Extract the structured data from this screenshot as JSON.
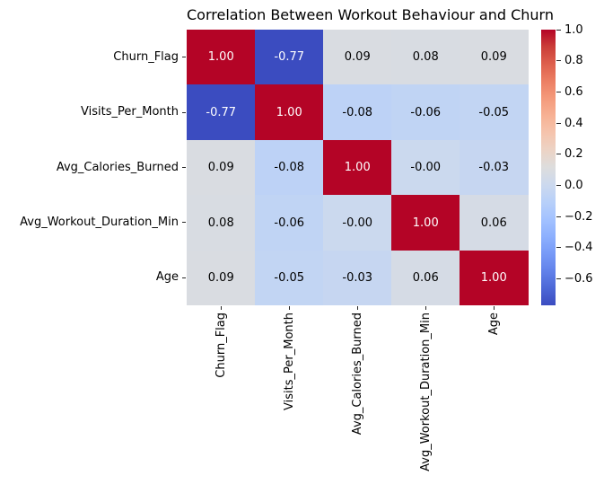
{
  "figure": {
    "title": "Correlation Between Workout Behaviour and Churn",
    "background_color": "#ffffff"
  },
  "chart_data": {
    "type": "heatmap",
    "title": "Correlation Between Workout Behaviour and Churn",
    "categories": [
      "Churn_Flag",
      "Visits_Per_Month",
      "Avg_Calories_Burned",
      "Avg_Workout_Duration_Min",
      "Age"
    ],
    "matrix": [
      [
        1.0,
        -0.77,
        0.09,
        0.08,
        0.09
      ],
      [
        -0.77,
        1.0,
        -0.08,
        -0.06,
        -0.05
      ],
      [
        0.09,
        -0.08,
        1.0,
        -0.0,
        -0.03
      ],
      [
        0.08,
        -0.06,
        -0.0,
        1.0,
        0.06
      ],
      [
        0.09,
        -0.05,
        -0.03,
        0.06,
        1.0
      ]
    ],
    "annotations": [
      [
        "1.00",
        "-0.77",
        "0.09",
        "0.08",
        "0.09"
      ],
      [
        "-0.77",
        "1.00",
        "-0.08",
        "-0.06",
        "-0.05"
      ],
      [
        "0.09",
        "-0.08",
        "1.00",
        "-0.00",
        "-0.03"
      ],
      [
        "0.08",
        "-0.06",
        "-0.00",
        "1.00",
        "0.06"
      ],
      [
        "0.09",
        "-0.05",
        "-0.03",
        "0.06",
        "1.00"
      ]
    ],
    "vmin": -0.77,
    "vmax": 1.0,
    "colormap_name": "coolwarm",
    "colormap_stops": [
      {
        "t": 0.0,
        "color": [
          59,
          76,
          192
        ]
      },
      {
        "t": 0.0625,
        "color": [
          77,
          104,
          215
        ]
      },
      {
        "t": 0.125,
        "color": [
          98,
          130,
          234
        ]
      },
      {
        "t": 0.1875,
        "color": [
          119,
          154,
          247
        ]
      },
      {
        "t": 0.25,
        "color": [
          141,
          176,
          254
        ]
      },
      {
        "t": 0.3125,
        "color": [
          163,
          194,
          255
        ]
      },
      {
        "t": 0.375,
        "color": [
          184,
          208,
          249
        ]
      },
      {
        "t": 0.4375,
        "color": [
          204,
          217,
          238
        ]
      },
      {
        "t": 0.5,
        "color": [
          221,
          221,
          221
        ]
      },
      {
        "t": 0.5625,
        "color": [
          236,
          211,
          197
        ]
      },
      {
        "t": 0.625,
        "color": [
          245,
          196,
          173
        ]
      },
      {
        "t": 0.6875,
        "color": [
          247,
          177,
          148
        ]
      },
      {
        "t": 0.75,
        "color": [
          244,
          154,
          123
        ]
      },
      {
        "t": 0.8125,
        "color": [
          236,
          127,
          99
        ]
      },
      {
        "t": 0.875,
        "color": [
          222,
          96,
          77
        ]
      },
      {
        "t": 0.9375,
        "color": [
          203,
          62,
          56
        ]
      },
      {
        "t": 1.0,
        "color": [
          180,
          4,
          38
        ]
      }
    ],
    "annotation_text_light": "#ffffff",
    "annotation_text_dark": "#000000",
    "colorbar_ticks": [
      {
        "value": 1.0,
        "label": "1.0"
      },
      {
        "value": 0.8,
        "label": "0.8"
      },
      {
        "value": 0.6,
        "label": "0.6"
      },
      {
        "value": 0.4,
        "label": "0.4"
      },
      {
        "value": 0.2,
        "label": "0.2"
      },
      {
        "value": 0.0,
        "label": "0.0"
      },
      {
        "value": -0.2,
        "label": "−0.2"
      },
      {
        "value": -0.4,
        "label": "−0.4"
      },
      {
        "value": -0.6,
        "label": "−0.6"
      }
    ],
    "legend_position": "right-colorbar",
    "grid": false
  }
}
